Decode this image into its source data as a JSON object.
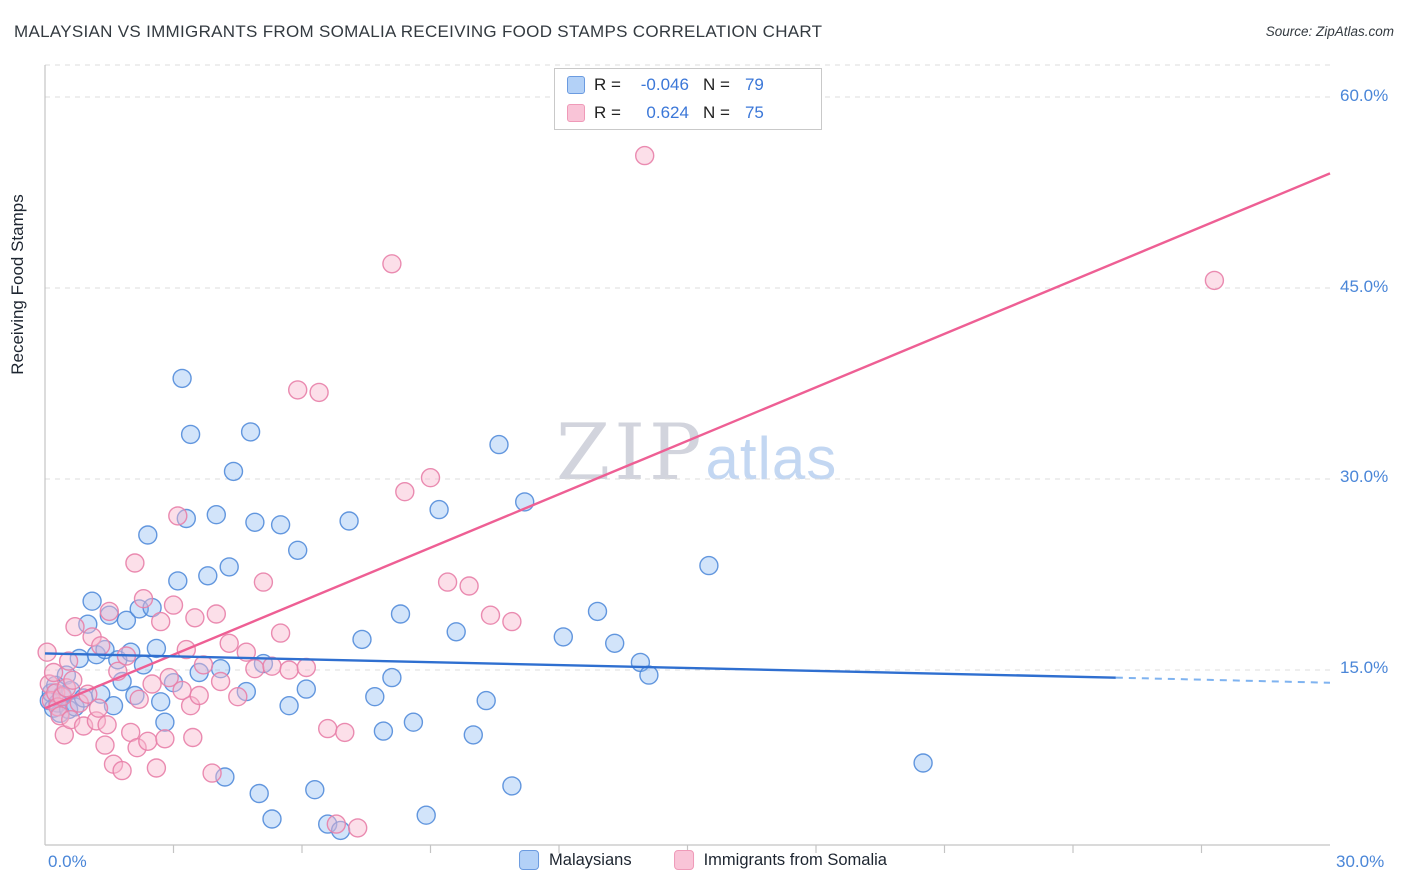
{
  "header": {
    "title": "MALAYSIAN VS IMMIGRANTS FROM SOMALIA RECEIVING FOOD STAMPS CORRELATION CHART",
    "source": "Source: ZipAtlas.com"
  },
  "watermark": {
    "zip": "ZIP",
    "atlas": "atlas"
  },
  "axes": {
    "y_axis_title": "Receiving Food Stamps",
    "y_ticks": [
      "60.0%",
      "45.0%",
      "30.0%",
      "15.0%"
    ],
    "x_min_label": "0.0%",
    "x_max_label": "30.0%",
    "grid_values": [
      15,
      30,
      45,
      60
    ]
  },
  "legend_box": {
    "rows": [
      {
        "r_label": "R =",
        "r_value": "-0.046",
        "n_label": "N =",
        "n_value": "79"
      },
      {
        "r_label": "R =",
        "r_value": "0.624",
        "n_label": "N =",
        "n_value": "75"
      }
    ]
  },
  "bottom_legend": {
    "items": [
      {
        "label": "Malaysians"
      },
      {
        "label": "Immigrants from Somalia"
      }
    ]
  },
  "colors": {
    "blue_point_fill": "#7fb3f0",
    "blue_point_stroke": "#4a86d8",
    "pink_point_fill": "#f9b8cf",
    "pink_point_stroke": "#e87fa8",
    "blue_trend": "#2f6fd0",
    "pink_trend": "#ee5f94",
    "axis_label_blue": "#4a86d8",
    "r_value_blue": "#3b77d8"
  },
  "chart_data": {
    "type": "scatter",
    "title": "Malaysian vs Immigrants from Somalia Receiving Food Stamps",
    "xlabel": "",
    "ylabel": "Receiving Food Stamps",
    "xlim": [
      0,
      30
    ],
    "ylim": [
      0,
      62.5
    ],
    "x_units": "percent",
    "y_units": "percent",
    "grid": "horizontal-dashed",
    "legend_position": "bottom-center",
    "series": [
      {
        "name": "Malaysians",
        "R": -0.046,
        "N": 79,
        "points": [
          [
            0.1,
            12.6
          ],
          [
            0.15,
            13.2
          ],
          [
            0.2,
            12.0
          ],
          [
            0.25,
            13.8
          ],
          [
            0.3,
            12.4
          ],
          [
            0.35,
            11.6
          ],
          [
            0.4,
            13.0
          ],
          [
            0.5,
            14.6
          ],
          [
            0.55,
            11.9
          ],
          [
            0.6,
            13.4
          ],
          [
            0.7,
            12.1
          ],
          [
            0.8,
            15.9
          ],
          [
            0.9,
            12.8
          ],
          [
            1.0,
            18.6
          ],
          [
            1.1,
            20.4
          ],
          [
            1.2,
            16.2
          ],
          [
            1.3,
            13.1
          ],
          [
            1.4,
            16.6
          ],
          [
            1.5,
            19.3
          ],
          [
            1.6,
            12.2
          ],
          [
            1.7,
            15.8
          ],
          [
            1.8,
            14.1
          ],
          [
            1.9,
            18.9
          ],
          [
            2.0,
            16.4
          ],
          [
            2.1,
            13.0
          ],
          [
            2.2,
            19.8
          ],
          [
            2.3,
            15.4
          ],
          [
            2.4,
            25.6
          ],
          [
            2.5,
            19.9
          ],
          [
            2.6,
            16.7
          ],
          [
            2.7,
            12.5
          ],
          [
            2.8,
            10.9
          ],
          [
            3.0,
            14.0
          ],
          [
            3.1,
            22.0
          ],
          [
            3.2,
            37.9
          ],
          [
            3.3,
            26.9
          ],
          [
            3.4,
            33.5
          ],
          [
            3.6,
            14.8
          ],
          [
            3.8,
            22.4
          ],
          [
            4.0,
            27.2
          ],
          [
            4.1,
            15.1
          ],
          [
            4.2,
            6.6
          ],
          [
            4.3,
            23.1
          ],
          [
            4.4,
            30.6
          ],
          [
            4.8,
            33.7
          ],
          [
            4.7,
            13.3
          ],
          [
            4.9,
            26.6
          ],
          [
            5.0,
            5.3
          ],
          [
            5.1,
            15.5
          ],
          [
            5.3,
            3.3
          ],
          [
            5.5,
            26.4
          ],
          [
            5.7,
            12.2
          ],
          [
            5.9,
            24.4
          ],
          [
            6.1,
            13.5
          ],
          [
            6.3,
            5.6
          ],
          [
            6.6,
            2.9
          ],
          [
            6.9,
            2.4
          ],
          [
            7.1,
            26.7
          ],
          [
            7.4,
            17.4
          ],
          [
            7.7,
            12.9
          ],
          [
            7.9,
            10.2
          ],
          [
            8.1,
            14.4
          ],
          [
            8.3,
            19.4
          ],
          [
            8.6,
            10.9
          ],
          [
            8.9,
            3.6
          ],
          [
            9.2,
            27.6
          ],
          [
            9.6,
            18.0
          ],
          [
            10.0,
            9.9
          ],
          [
            10.3,
            12.6
          ],
          [
            10.6,
            32.7
          ],
          [
            11.2,
            28.2
          ],
          [
            10.9,
            5.9
          ],
          [
            12.1,
            17.6
          ],
          [
            12.9,
            19.6
          ],
          [
            13.3,
            17.1
          ],
          [
            13.9,
            15.6
          ],
          [
            14.1,
            14.6
          ],
          [
            15.5,
            23.2
          ],
          [
            20.5,
            7.7
          ]
        ]
      },
      {
        "name": "Immigrants from Somalia",
        "R": 0.624,
        "N": 75,
        "points": [
          [
            0.05,
            16.4
          ],
          [
            0.1,
            13.9
          ],
          [
            0.15,
            12.6
          ],
          [
            0.2,
            14.8
          ],
          [
            0.25,
            13.2
          ],
          [
            0.3,
            12.1
          ],
          [
            0.35,
            11.4
          ],
          [
            0.4,
            12.9
          ],
          [
            0.45,
            9.9
          ],
          [
            0.5,
            13.6
          ],
          [
            0.55,
            15.7
          ],
          [
            0.6,
            11.1
          ],
          [
            0.65,
            14.2
          ],
          [
            0.7,
            18.4
          ],
          [
            0.8,
            12.4
          ],
          [
            0.9,
            10.6
          ],
          [
            1.0,
            13.1
          ],
          [
            1.1,
            17.6
          ],
          [
            1.2,
            11.0
          ],
          [
            1.25,
            12.0
          ],
          [
            1.3,
            16.9
          ],
          [
            1.4,
            9.1
          ],
          [
            1.45,
            10.7
          ],
          [
            1.5,
            19.6
          ],
          [
            1.6,
            7.6
          ],
          [
            1.7,
            14.9
          ],
          [
            1.8,
            7.1
          ],
          [
            1.9,
            16.1
          ],
          [
            2.0,
            10.1
          ],
          [
            2.1,
            23.4
          ],
          [
            2.15,
            8.9
          ],
          [
            2.2,
            12.7
          ],
          [
            2.3,
            20.6
          ],
          [
            2.4,
            9.4
          ],
          [
            2.5,
            13.9
          ],
          [
            2.6,
            7.3
          ],
          [
            2.7,
            18.8
          ],
          [
            2.8,
            9.6
          ],
          [
            2.9,
            14.4
          ],
          [
            3.0,
            20.1
          ],
          [
            3.1,
            27.1
          ],
          [
            3.2,
            13.4
          ],
          [
            3.3,
            16.6
          ],
          [
            3.4,
            12.2
          ],
          [
            3.45,
            9.7
          ],
          [
            3.5,
            19.1
          ],
          [
            3.6,
            13.0
          ],
          [
            3.7,
            15.4
          ],
          [
            3.9,
            6.9
          ],
          [
            4.0,
            19.4
          ],
          [
            4.1,
            14.1
          ],
          [
            4.3,
            17.1
          ],
          [
            4.5,
            12.9
          ],
          [
            4.7,
            16.4
          ],
          [
            4.9,
            15.1
          ],
          [
            5.1,
            21.9
          ],
          [
            5.3,
            15.3
          ],
          [
            5.5,
            17.9
          ],
          [
            5.7,
            15.0
          ],
          [
            5.9,
            37.0
          ],
          [
            6.1,
            15.2
          ],
          [
            6.4,
            36.8
          ],
          [
            6.6,
            10.4
          ],
          [
            6.8,
            2.9
          ],
          [
            7.0,
            10.1
          ],
          [
            7.3,
            2.6
          ],
          [
            8.1,
            46.9
          ],
          [
            8.4,
            29.0
          ],
          [
            9.0,
            30.1
          ],
          [
            9.4,
            21.9
          ],
          [
            9.9,
            21.6
          ],
          [
            10.4,
            19.3
          ],
          [
            10.9,
            18.8
          ],
          [
            14.0,
            55.4
          ],
          [
            27.3,
            45.6
          ]
        ]
      }
    ],
    "trend_lines": [
      {
        "series": "Malaysians",
        "solid": {
          "x1": 0,
          "y1": 16.3,
          "x2": 25,
          "y2": 14.4
        },
        "dashed": {
          "x1": 25,
          "y1": 14.4,
          "x2": 30,
          "y2": 14.0
        }
      },
      {
        "series": "Immigrants from Somalia",
        "solid": {
          "x1": 0,
          "y1": 12.0,
          "x2": 30,
          "y2": 54.0
        }
      }
    ]
  }
}
